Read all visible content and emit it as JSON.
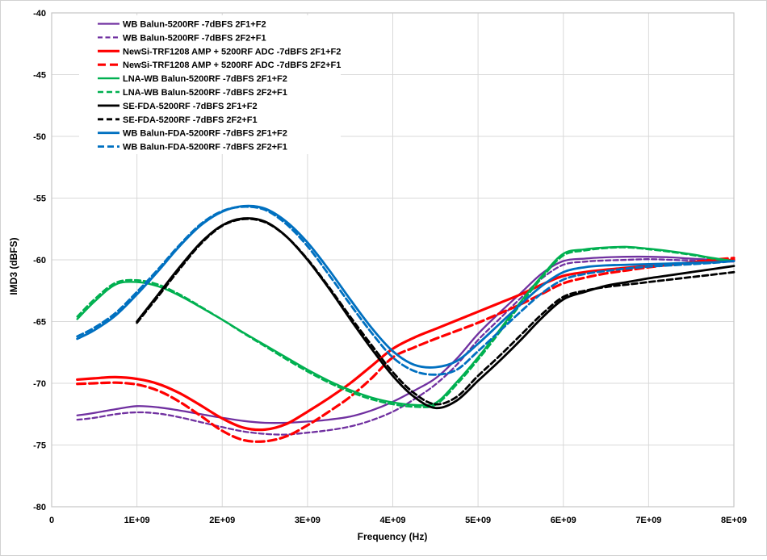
{
  "figure": {
    "background": "#FFFFFF",
    "outer_border_color": "#D2D2D2",
    "grid_color": "#D9D9D9",
    "plot_border_color": "#C6C6C6",
    "text_color": "#000000"
  },
  "chart_data": {
    "type": "line",
    "title": "",
    "xlabel": "Frequency (Hz)",
    "ylabel": "IMD3 (dBFS)",
    "x_unit": "GHz",
    "xlim_hz": [
      0,
      8000000000
    ],
    "ylim": [
      -80,
      -40
    ],
    "grid": true,
    "legend_position": "top-left-inside",
    "x_ticks": [
      0,
      1,
      2,
      3,
      4,
      5,
      6,
      7,
      8
    ],
    "x_tick_labels": [
      "0",
      "1E+09",
      "2E+09",
      "3E+09",
      "4E+09",
      "5E+09",
      "6E+09",
      "7E+09",
      "8E+09"
    ],
    "y_ticks": [
      -40,
      -45,
      -50,
      -55,
      -60,
      -65,
      -70,
      -75,
      -80
    ],
    "y_tick_labels": [
      "-40",
      "-45",
      "-50",
      "-55",
      "-60",
      "-65",
      "-70",
      "-75",
      "-80"
    ],
    "series": [
      {
        "name": "WB Balun-5200RF  -7dBFS 2F1+F2",
        "color": "#7030A0",
        "dashed": false,
        "width": 2.3,
        "dash_pattern": "",
        "x": [
          0.3,
          0.5,
          0.75,
          1,
          1.25,
          1.5,
          1.75,
          2,
          2.25,
          2.5,
          2.75,
          3,
          3.25,
          3.5,
          3.75,
          4,
          4.25,
          4.5,
          4.75,
          5,
          5.25,
          5.5,
          5.75,
          6,
          6.25,
          6.5,
          6.75,
          7,
          7.25,
          7.5,
          7.75,
          8
        ],
        "y": [
          -72.6,
          -72.4,
          -72.1,
          -71.85,
          -71.95,
          -72.2,
          -72.5,
          -72.8,
          -73.05,
          -73.2,
          -73.2,
          -73.1,
          -72.95,
          -72.7,
          -72.2,
          -71.5,
          -70.6,
          -69.6,
          -68.0,
          -66.0,
          -64.3,
          -62.7,
          -61.1,
          -60.1,
          -59.9,
          -59.8,
          -59.75,
          -59.75,
          -59.8,
          -59.9,
          -60.0,
          -60.1
        ]
      },
      {
        "name": "WB Balun-5200RF  -7dBFS 2F2+F1",
        "color": "#7030A0",
        "dashed": true,
        "width": 2.3,
        "dash_pattern": "6 3.5",
        "x": [
          0.3,
          0.5,
          0.75,
          1,
          1.25,
          1.5,
          1.75,
          2,
          2.25,
          2.5,
          2.75,
          3,
          3.25,
          3.5,
          3.75,
          4,
          4.25,
          4.5,
          4.75,
          5,
          5.25,
          5.5,
          5.75,
          6,
          6.25,
          6.5,
          6.75,
          7,
          7.25,
          7.5,
          7.75,
          8
        ],
        "y": [
          -72.95,
          -72.8,
          -72.5,
          -72.35,
          -72.45,
          -72.75,
          -73.15,
          -73.55,
          -73.9,
          -74.1,
          -74.15,
          -74.0,
          -73.8,
          -73.5,
          -73.0,
          -72.3,
          -71.3,
          -70.1,
          -68.5,
          -66.5,
          -64.8,
          -63.1,
          -61.5,
          -60.4,
          -60.15,
          -60.05,
          -60.0,
          -59.95,
          -60.0,
          -60.05,
          -60.1,
          -60.15
        ]
      },
      {
        "name": "NewSi-TRF1208 AMP + 5200RF ADC  -7dBFS 2F1+F2",
        "color": "#FF0000",
        "dashed": false,
        "width": 3.2,
        "dash_pattern": "",
        "x": [
          0.3,
          0.5,
          0.75,
          1,
          1.25,
          1.5,
          1.75,
          2,
          2.25,
          2.5,
          2.75,
          3,
          3.25,
          3.5,
          3.75,
          4,
          4.25,
          4.5,
          4.75,
          5,
          5.25,
          5.5,
          5.75,
          6,
          6.25,
          6.5,
          6.75,
          7,
          7.25,
          7.5,
          7.75,
          8
        ],
        "y": [
          -69.7,
          -69.6,
          -69.5,
          -69.65,
          -70.05,
          -70.8,
          -71.8,
          -72.85,
          -73.6,
          -73.75,
          -73.3,
          -72.3,
          -71.2,
          -70.0,
          -68.6,
          -67.2,
          -66.3,
          -65.6,
          -64.9,
          -64.2,
          -63.5,
          -62.8,
          -62.0,
          -61.3,
          -61.0,
          -60.8,
          -60.65,
          -60.5,
          -60.35,
          -60.25,
          -60.1,
          -60.0
        ]
      },
      {
        "name": "NewSi-TRF1208 AMP + 5200RF ADC  -7dBFS 2F2+F1",
        "color": "#FF0000",
        "dashed": true,
        "width": 3.2,
        "dash_pattern": "10 5",
        "x": [
          0.3,
          0.5,
          0.75,
          1,
          1.25,
          1.5,
          1.75,
          2,
          2.25,
          2.5,
          2.75,
          3,
          3.25,
          3.5,
          3.75,
          4,
          4.25,
          4.5,
          4.75,
          5,
          5.25,
          5.5,
          5.75,
          6,
          6.25,
          6.5,
          6.75,
          7,
          7.25,
          7.5,
          7.75,
          8
        ],
        "y": [
          -70.05,
          -70.0,
          -69.95,
          -70.1,
          -70.6,
          -71.5,
          -72.65,
          -73.85,
          -74.6,
          -74.7,
          -74.3,
          -73.4,
          -72.3,
          -71.1,
          -69.6,
          -67.9,
          -67.1,
          -66.4,
          -65.75,
          -65.1,
          -64.35,
          -63.6,
          -62.75,
          -61.9,
          -61.45,
          -61.1,
          -60.85,
          -60.6,
          -60.4,
          -60.2,
          -60.0,
          -59.85
        ]
      },
      {
        "name": "LNA-WB Balun-5200RF  -7dBFS 2F1+F2",
        "color": "#00B050",
        "dashed": false,
        "width": 2.4,
        "dash_pattern": "",
        "x": [
          0.3,
          0.5,
          0.75,
          1,
          1.25,
          1.5,
          1.75,
          2,
          2.25,
          2.5,
          2.75,
          3,
          3.25,
          3.5,
          3.75,
          4,
          4.25,
          4.5,
          4.75,
          5,
          5.25,
          5.5,
          5.75,
          6,
          6.25,
          6.5,
          6.75,
          7,
          7.25,
          7.5,
          7.75,
          8
        ],
        "y": [
          -64.8,
          -63.4,
          -62.0,
          -61.8,
          -62.15,
          -62.9,
          -63.85,
          -64.85,
          -65.9,
          -66.9,
          -67.9,
          -68.9,
          -69.8,
          -70.55,
          -71.15,
          -71.55,
          -71.75,
          -71.6,
          -69.9,
          -67.9,
          -65.7,
          -63.4,
          -61.3,
          -59.5,
          -59.15,
          -59.0,
          -58.95,
          -59.1,
          -59.3,
          -59.55,
          -59.85,
          -60.1
        ]
      },
      {
        "name": "LNA-WB Balun-5200RF  -7dBFS 2F2+F1",
        "color": "#00B050",
        "dashed": true,
        "width": 2.4,
        "dash_pattern": "7 4",
        "x": [
          0.3,
          0.5,
          0.75,
          1,
          1.25,
          1.5,
          1.75,
          2,
          2.25,
          2.5,
          2.75,
          3,
          3.25,
          3.5,
          3.75,
          4,
          4.25,
          4.5,
          4.75,
          5,
          5.25,
          5.5,
          5.75,
          6,
          6.25,
          6.5,
          6.75,
          7,
          7.25,
          7.5,
          7.75,
          8
        ],
        "y": [
          -64.6,
          -63.2,
          -61.85,
          -61.65,
          -62.0,
          -62.8,
          -63.8,
          -64.85,
          -65.95,
          -67.0,
          -68.05,
          -69.05,
          -69.95,
          -70.7,
          -71.3,
          -71.7,
          -71.9,
          -71.75,
          -70.1,
          -68.1,
          -65.9,
          -63.6,
          -61.45,
          -59.65,
          -59.25,
          -59.05,
          -59.0,
          -59.15,
          -59.35,
          -59.6,
          -59.9,
          -60.15
        ]
      },
      {
        "name": "SE-FDA-5200RF  -7dBFS 2F1+F2",
        "color": "#000000",
        "dashed": false,
        "width": 2.8,
        "dash_pattern": "",
        "x": [
          1,
          1.25,
          1.5,
          1.75,
          2,
          2.25,
          2.5,
          2.75,
          3,
          3.25,
          3.5,
          3.75,
          4,
          4.25,
          4.5,
          4.75,
          5,
          5.25,
          5.5,
          5.75,
          6,
          6.25,
          6.5,
          6.75,
          7,
          7.25,
          7.5,
          7.75,
          8
        ],
        "y": [
          -65.0,
          -62.8,
          -60.6,
          -58.6,
          -57.2,
          -56.65,
          -56.9,
          -58.1,
          -60.0,
          -62.3,
          -64.8,
          -67.2,
          -69.4,
          -71.1,
          -72.0,
          -71.4,
          -69.8,
          -68.2,
          -66.5,
          -64.7,
          -63.2,
          -62.6,
          -62.1,
          -61.8,
          -61.5,
          -61.25,
          -61.0,
          -60.75,
          -60.5
        ]
      },
      {
        "name": "SE-FDA-5200RF  -7dBFS 2F2+F1",
        "color": "#000000",
        "dashed": true,
        "width": 2.8,
        "dash_pattern": "7 4",
        "x": [
          1,
          1.25,
          1.5,
          1.75,
          2,
          2.25,
          2.5,
          2.75,
          3,
          3.25,
          3.5,
          3.75,
          4,
          4.25,
          4.5,
          4.75,
          5,
          5.25,
          5.5,
          5.75,
          6,
          6.25,
          6.5,
          6.75,
          7,
          7.25,
          7.5,
          7.75,
          8
        ],
        "y": [
          -65.1,
          -62.95,
          -60.75,
          -58.7,
          -57.25,
          -56.7,
          -56.95,
          -58.1,
          -59.95,
          -62.2,
          -64.6,
          -66.9,
          -69.1,
          -70.8,
          -71.7,
          -71.1,
          -69.4,
          -67.8,
          -66.1,
          -64.4,
          -63.0,
          -62.5,
          -62.2,
          -62.0,
          -61.8,
          -61.6,
          -61.4,
          -61.2,
          -61.0
        ]
      },
      {
        "name": "WB Balun-FDA-5200RF  -7dBFS 2F1+F2",
        "color": "#0070C0",
        "dashed": false,
        "width": 2.8,
        "dash_pattern": "",
        "x": [
          0.3,
          0.5,
          0.75,
          1,
          1.25,
          1.5,
          1.75,
          2,
          2.25,
          2.5,
          2.75,
          3,
          3.25,
          3.5,
          3.75,
          4,
          4.25,
          4.5,
          4.75,
          5,
          5.25,
          5.5,
          5.75,
          6,
          6.25,
          6.5,
          6.75,
          7,
          7.25,
          7.5,
          7.75,
          8
        ],
        "y": [
          -66.4,
          -65.7,
          -64.5,
          -62.8,
          -60.9,
          -58.9,
          -57.2,
          -56.1,
          -55.65,
          -55.85,
          -56.9,
          -58.6,
          -60.8,
          -63.2,
          -65.5,
          -67.4,
          -68.5,
          -68.7,
          -68.2,
          -66.8,
          -65.2,
          -63.6,
          -62.1,
          -61.0,
          -60.6,
          -60.45,
          -60.4,
          -60.35,
          -60.3,
          -60.25,
          -60.2,
          -60.1
        ]
      },
      {
        "name": "WB Balun-FDA-5200RF  -7dBFS 2F2+F1",
        "color": "#0070C0",
        "dashed": true,
        "width": 2.8,
        "dash_pattern": "8 4",
        "x": [
          0.3,
          0.5,
          0.75,
          1,
          1.25,
          1.5,
          1.75,
          2,
          2.25,
          2.5,
          2.75,
          3,
          3.25,
          3.5,
          3.75,
          4,
          4.25,
          4.5,
          4.75,
          5,
          5.25,
          5.5,
          5.75,
          6,
          6.25,
          6.5,
          6.75,
          7,
          7.25,
          7.5,
          7.75,
          8
        ],
        "y": [
          -66.2,
          -65.5,
          -64.3,
          -62.6,
          -60.75,
          -58.8,
          -57.1,
          -56.05,
          -55.7,
          -55.95,
          -57.1,
          -58.9,
          -61.2,
          -63.6,
          -65.9,
          -67.9,
          -69.0,
          -69.3,
          -68.9,
          -67.4,
          -65.8,
          -64.2,
          -62.7,
          -61.6,
          -61.15,
          -60.9,
          -60.7,
          -60.55,
          -60.45,
          -60.35,
          -60.25,
          -60.1
        ]
      }
    ]
  }
}
